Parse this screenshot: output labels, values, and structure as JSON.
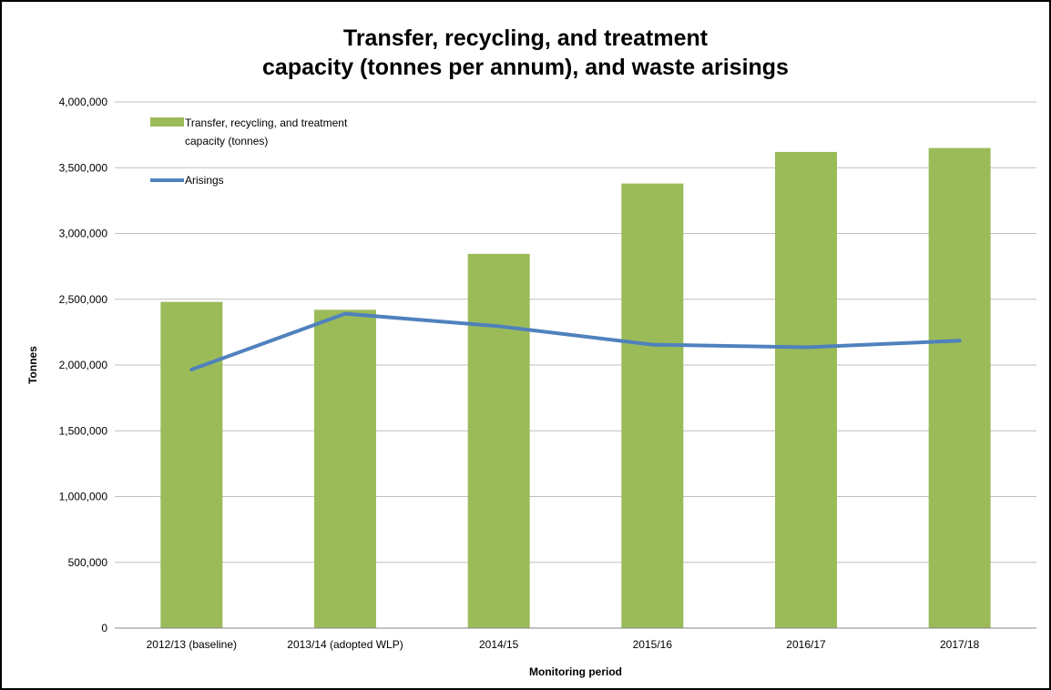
{
  "chart_data": {
    "type": "bar",
    "title_line1": "Transfer, recycling, and treatment",
    "title_line2": "capacity (tonnes per annum), and waste arisings",
    "xlabel": "Monitoring period",
    "ylabel": "Tonnes",
    "ylim": [
      0,
      4000000
    ],
    "y_ticks": [
      {
        "value": 0,
        "label": "0"
      },
      {
        "value": 500000,
        "label": "500,000"
      },
      {
        "value": 1000000,
        "label": "1,000,000"
      },
      {
        "value": 1500000,
        "label": "1,500,000"
      },
      {
        "value": 2000000,
        "label": "2,000,000"
      },
      {
        "value": 2500000,
        "label": "2,500,000"
      },
      {
        "value": 3000000,
        "label": "3,000,000"
      },
      {
        "value": 3500000,
        "label": "3,500,000"
      },
      {
        "value": 4000000,
        "label": "4,000,000"
      }
    ],
    "grid": true,
    "legend_position": "top-left",
    "categories": [
      "2012/13 (baseline)",
      "2013/14 (adopted WLP)",
      "2014/15",
      "2015/16",
      "2016/17",
      "2017/18"
    ],
    "series": [
      {
        "name_line1": "Transfer, recycling, and treatment",
        "name_line2": "capacity (tonnes)",
        "type": "bar",
        "color": "#9bbb59",
        "values": [
          2480000,
          2420000,
          2845000,
          3380000,
          3620000,
          3650000
        ]
      },
      {
        "name": "Arisings",
        "type": "line",
        "color": "#4f81bd",
        "values": [
          1965000,
          2390000,
          2295000,
          2155000,
          2135000,
          2185000
        ]
      }
    ]
  }
}
